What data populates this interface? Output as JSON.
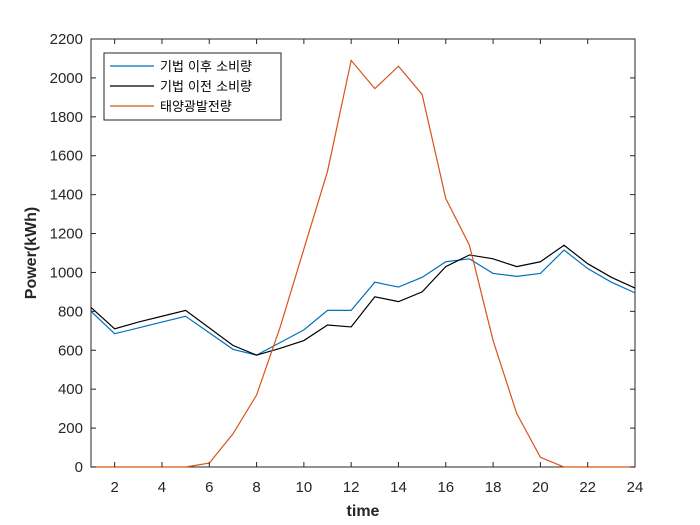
{
  "chart_data": {
    "type": "line",
    "xlabel": "time",
    "ylabel": "Power(kWh)",
    "xlim": [
      1,
      24
    ],
    "ylim": [
      0,
      2200
    ],
    "xticks": [
      2,
      4,
      6,
      8,
      10,
      12,
      14,
      16,
      18,
      20,
      22,
      24
    ],
    "yticks": [
      0,
      200,
      400,
      600,
      800,
      1000,
      1200,
      1400,
      1600,
      1800,
      2000,
      2200
    ],
    "grid": false,
    "legend_position": "top-left",
    "x": [
      1,
      2,
      3,
      4,
      5,
      6,
      7,
      8,
      9,
      10,
      11,
      12,
      13,
      14,
      15,
      16,
      17,
      18,
      19,
      20,
      21,
      22,
      23,
      24
    ],
    "series": [
      {
        "name": "기법 이후 소비량",
        "color": "#0072BD",
        "values": [
          800,
          685,
          715,
          745,
          775,
          690,
          605,
          575,
          640,
          705,
          805,
          805,
          950,
          925,
          975,
          1055,
          1070,
          995,
          980,
          995,
          1115,
          1020,
          950,
          895
        ]
      },
      {
        "name": "기법 이전 소비량",
        "color": "#000000",
        "values": [
          820,
          710,
          745,
          775,
          805,
          715,
          625,
          575,
          610,
          650,
          730,
          720,
          875,
          850,
          900,
          1030,
          1090,
          1070,
          1030,
          1055,
          1140,
          1045,
          975,
          920
        ]
      },
      {
        "name": "태양광발전량",
        "color": "#D95319",
        "values": [
          0,
          0,
          0,
          0,
          0,
          20,
          170,
          370,
          720,
          1120,
          1520,
          2090,
          1945,
          2060,
          1915,
          1380,
          1140,
          650,
          275,
          50,
          0,
          0,
          0,
          0
        ]
      }
    ]
  }
}
